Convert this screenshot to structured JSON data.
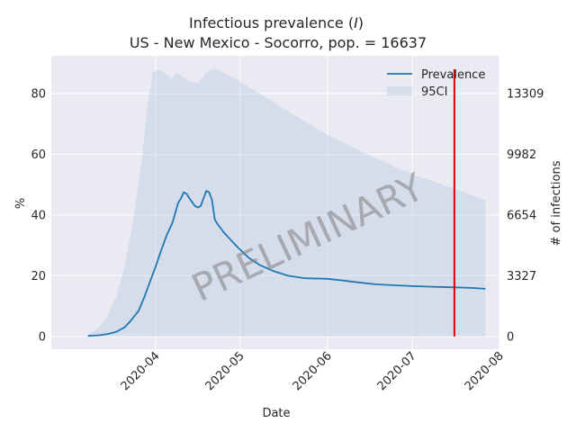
{
  "chart_data": {
    "type": "line",
    "title_line1_prefix": "Infectious prevalence (",
    "title_line1_var": "I",
    "title_line1_suffix": ")",
    "title_line2": "US - New Mexico - Socorro, pop. = 16637",
    "xlabel": "Date",
    "ylabel_left": "%",
    "ylabel_right": "# of infections",
    "x_ticks": [
      "2020-04",
      "2020-05",
      "2020-06",
      "2020-07",
      "2020-08"
    ],
    "x_tick_dates": [
      "2020-04-01",
      "2020-05-01",
      "2020-06-01",
      "2020-07-01",
      "2020-08-01"
    ],
    "x_range": [
      "2020-02-24",
      "2020-08-01"
    ],
    "y_ticks_left": [
      "0",
      "20",
      "40",
      "60",
      "80"
    ],
    "y_tick_values_left": [
      0,
      20,
      40,
      60,
      80
    ],
    "y_ticks_right": [
      "0",
      "3327",
      "6654",
      "9982",
      "13309"
    ],
    "ylim": [
      -4.2,
      92.5
    ],
    "grid": true,
    "legend_position": "top-right",
    "watermark": "PRELIMINARY",
    "vertical_marker": {
      "date": "2020-07-16",
      "color": "#e00000"
    },
    "series": [
      {
        "name": "Prevalence",
        "color": "#1f77b4",
        "x": [
          "2020-03-08",
          "2020-03-12",
          "2020-03-15",
          "2020-03-18",
          "2020-03-21",
          "2020-03-23",
          "2020-03-26",
          "2020-03-28",
          "2020-03-30",
          "2020-04-01",
          "2020-04-03",
          "2020-04-05",
          "2020-04-07",
          "2020-04-09",
          "2020-04-10",
          "2020-04-11",
          "2020-04-12",
          "2020-04-13",
          "2020-04-14",
          "2020-04-15",
          "2020-04-16",
          "2020-04-17",
          "2020-04-18",
          "2020-04-19",
          "2020-04-20",
          "2020-04-21",
          "2020-04-22",
          "2020-04-23",
          "2020-04-24",
          "2020-04-25",
          "2020-04-27",
          "2020-04-30",
          "2020-05-04",
          "2020-05-08",
          "2020-05-13",
          "2020-05-18",
          "2020-05-24",
          "2020-06-01",
          "2020-06-06",
          "2020-06-12",
          "2020-06-18",
          "2020-06-24",
          "2020-07-01",
          "2020-07-08",
          "2020-07-15",
          "2020-07-22",
          "2020-07-27"
        ],
        "values": [
          0.2,
          0.4,
          0.8,
          1.5,
          3.0,
          5.0,
          8.5,
          13.0,
          18.0,
          23.0,
          28.5,
          33.5,
          37.5,
          44.0,
          45.5,
          47.5,
          47.0,
          45.5,
          44.2,
          43.0,
          42.5,
          43.0,
          45.5,
          48.0,
          47.5,
          45.0,
          38.5,
          37.0,
          35.8,
          34.5,
          32.5,
          29.5,
          26.0,
          23.5,
          21.5,
          20.0,
          19.2,
          19.0,
          18.5,
          17.8,
          17.2,
          16.9,
          16.6,
          16.4,
          16.2,
          16.0,
          15.7
        ]
      },
      {
        "name": "95CI",
        "color": "#b0c4de",
        "x": [
          "2020-03-08",
          "2020-03-12",
          "2020-03-15",
          "2020-03-18",
          "2020-03-21",
          "2020-03-24",
          "2020-03-27",
          "2020-03-29",
          "2020-03-31",
          "2020-04-02",
          "2020-04-04",
          "2020-04-06",
          "2020-04-07",
          "2020-04-08",
          "2020-04-10",
          "2020-04-13",
          "2020-04-16",
          "2020-04-19",
          "2020-04-21",
          "2020-04-23",
          "2020-04-25",
          "2020-04-30",
          "2020-05-08",
          "2020-05-20",
          "2020-06-01",
          "2020-06-15",
          "2020-07-01",
          "2020-07-15",
          "2020-07-27"
        ],
        "upper": [
          0.5,
          3.0,
          7.0,
          13.0,
          23.0,
          38.0,
          57.0,
          75.0,
          87.0,
          88.0,
          87.0,
          85.5,
          85.0,
          87.0,
          86.0,
          84.0,
          83.5,
          87.0,
          88.0,
          88.0,
          87.0,
          84.5,
          80.0,
          73.0,
          66.5,
          60.0,
          53.5,
          49.0,
          45.0
        ],
        "lower": [
          0,
          0,
          0,
          0,
          0,
          0,
          0,
          0,
          0,
          0,
          0,
          0,
          0,
          0,
          0,
          0,
          0,
          0,
          0,
          0,
          0,
          0,
          0,
          0,
          0,
          0,
          0,
          0,
          0
        ]
      }
    ]
  }
}
